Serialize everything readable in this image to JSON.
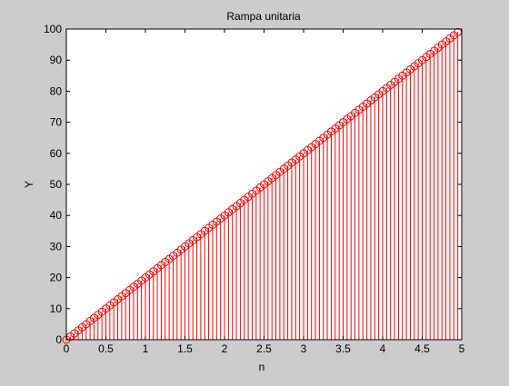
{
  "chart_data": {
    "type": "stem",
    "title": "Rampa unitaria",
    "xlabel": "n",
    "ylabel": "Y",
    "xlim": [
      0,
      5
    ],
    "ylim": [
      0,
      100
    ],
    "xticks": [
      "0",
      "0.5",
      "1",
      "1.5",
      "2",
      "2.5",
      "3",
      "3.5",
      "4",
      "4.5",
      "5"
    ],
    "yticks": [
      "0",
      "10",
      "20",
      "30",
      "40",
      "50",
      "60",
      "70",
      "80",
      "90",
      "100"
    ],
    "grid": false,
    "series": [
      {
        "x_start": 0,
        "x_end": 4.95,
        "x_step": 0.05,
        "y_equals_x_times": 20,
        "marker": "circle",
        "color": "#ff0000"
      }
    ]
  },
  "colors": {
    "figure_background": "#cccccc",
    "axes_background": "#ffffff",
    "stem": "#ff0000",
    "axis": "#000000"
  }
}
